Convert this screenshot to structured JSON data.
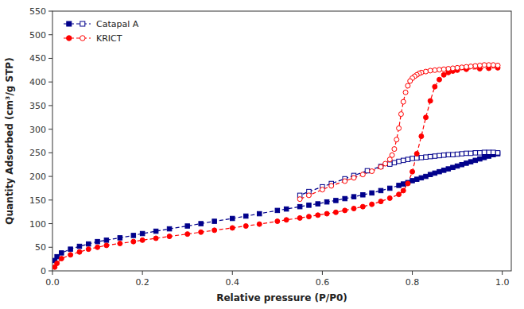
{
  "chart_data": {
    "type": "line",
    "xlabel": "Relative pressure (P/P0)",
    "ylabel": "Quantity Adsorbed (cm³/g STP)",
    "xlim": [
      0,
      1.02
    ],
    "ylim": [
      0,
      550
    ],
    "xticks": [
      {
        "value": 0,
        "label": "0.0"
      },
      0.2,
      0.4,
      0.6,
      0.8,
      {
        "value": 1,
        "label": "1.0"
      }
    ],
    "yticks": [
      0,
      50,
      100,
      150,
      200,
      250,
      300,
      350,
      400,
      450,
      500,
      550
    ],
    "grid": false,
    "legend": "upper left",
    "series": [
      {
        "name": "Catapal A",
        "color": "#00008B",
        "marker": "square",
        "line_style": "dashed",
        "x": [
          0.005,
          0.01,
          0.02,
          0.04,
          0.06,
          0.08,
          0.1,
          0.12,
          0.15,
          0.18,
          0.2,
          0.23,
          0.26,
          0.3,
          0.33,
          0.36,
          0.4,
          0.43,
          0.46,
          0.5,
          0.52,
          0.55,
          0.57,
          0.59,
          0.61,
          0.63,
          0.65,
          0.67,
          0.69,
          0.71,
          0.73,
          0.75,
          0.77,
          0.78,
          0.79,
          0.8,
          0.81,
          0.82,
          0.83,
          0.84,
          0.85,
          0.86,
          0.87,
          0.88,
          0.89,
          0.9,
          0.91,
          0.92,
          0.93,
          0.94,
          0.95,
          0.96,
          0.97,
          0.98,
          0.99
        ],
        "values": [
          22,
          30,
          38,
          46,
          52,
          57,
          62,
          65,
          70,
          75,
          79,
          84,
          89,
          95,
          100,
          105,
          111,
          116,
          121,
          128,
          131,
          136,
          139,
          142,
          146,
          149,
          153,
          157,
          161,
          165,
          170,
          175,
          181,
          184,
          187,
          191,
          194,
          197,
          200,
          204,
          207,
          210,
          213,
          216,
          219,
          222,
          225,
          228,
          231,
          234,
          237,
          240,
          243,
          246,
          248
        ]
      },
      {
        "name": "Catapal A",
        "color": "#00008B",
        "marker": "square-open",
        "line_style": "dashed",
        "x": [
          0.99,
          0.98,
          0.97,
          0.96,
          0.95,
          0.94,
          0.93,
          0.92,
          0.91,
          0.9,
          0.89,
          0.88,
          0.87,
          0.86,
          0.85,
          0.84,
          0.83,
          0.82,
          0.81,
          0.8,
          0.79,
          0.78,
          0.77,
          0.76,
          0.75,
          0.73,
          0.7,
          0.67,
          0.65,
          0.62,
          0.6,
          0.57,
          0.55
        ],
        "values": [
          250,
          251,
          251,
          251,
          250,
          250,
          249,
          249,
          248,
          247,
          246,
          246,
          245,
          244,
          243,
          242,
          241,
          240,
          239,
          238,
          236,
          234,
          232,
          229,
          226,
          221,
          212,
          202,
          195,
          185,
          178,
          168,
          160
        ]
      },
      {
        "name": "KRICT",
        "color": "#FF0000",
        "marker": "circle",
        "line_style": "dashed",
        "x": [
          0.005,
          0.01,
          0.02,
          0.04,
          0.06,
          0.08,
          0.1,
          0.12,
          0.15,
          0.18,
          0.2,
          0.23,
          0.26,
          0.3,
          0.33,
          0.36,
          0.4,
          0.43,
          0.46,
          0.5,
          0.52,
          0.55,
          0.57,
          0.59,
          0.61,
          0.63,
          0.65,
          0.67,
          0.69,
          0.71,
          0.73,
          0.75,
          0.77,
          0.78,
          0.79,
          0.8,
          0.81,
          0.82,
          0.83,
          0.84,
          0.85,
          0.86,
          0.87,
          0.88,
          0.89,
          0.9,
          0.92,
          0.95,
          0.97,
          0.99
        ],
        "values": [
          8,
          16,
          26,
          34,
          40,
          46,
          50,
          54,
          58,
          62,
          65,
          69,
          73,
          78,
          82,
          86,
          91,
          95,
          99,
          105,
          108,
          112,
          115,
          118,
          121,
          124,
          128,
          132,
          136,
          141,
          147,
          154,
          162,
          170,
          185,
          210,
          248,
          285,
          325,
          360,
          390,
          405,
          415,
          420,
          423,
          425,
          427,
          428,
          429,
          430
        ]
      },
      {
        "name": "KRICT",
        "color": "#FF0000",
        "marker": "circle-open",
        "line_style": "dashed",
        "x": [
          0.99,
          0.98,
          0.97,
          0.96,
          0.95,
          0.94,
          0.93,
          0.92,
          0.91,
          0.9,
          0.89,
          0.88,
          0.87,
          0.86,
          0.85,
          0.84,
          0.83,
          0.82,
          0.815,
          0.81,
          0.805,
          0.8,
          0.795,
          0.79,
          0.785,
          0.78,
          0.775,
          0.77,
          0.765,
          0.76,
          0.755,
          0.75,
          0.74,
          0.73,
          0.71,
          0.69,
          0.67,
          0.65,
          0.62,
          0.6,
          0.57,
          0.55
        ],
        "values": [
          435,
          436,
          436,
          436,
          435,
          434,
          433,
          432,
          431,
          430,
          429,
          428,
          427,
          426,
          425,
          424,
          422,
          420,
          418,
          415,
          412,
          408,
          402,
          392,
          378,
          358,
          332,
          302,
          278,
          258,
          245,
          236,
          227,
          220,
          211,
          204,
          197,
          190,
          180,
          172,
          160,
          152
        ]
      }
    ]
  }
}
